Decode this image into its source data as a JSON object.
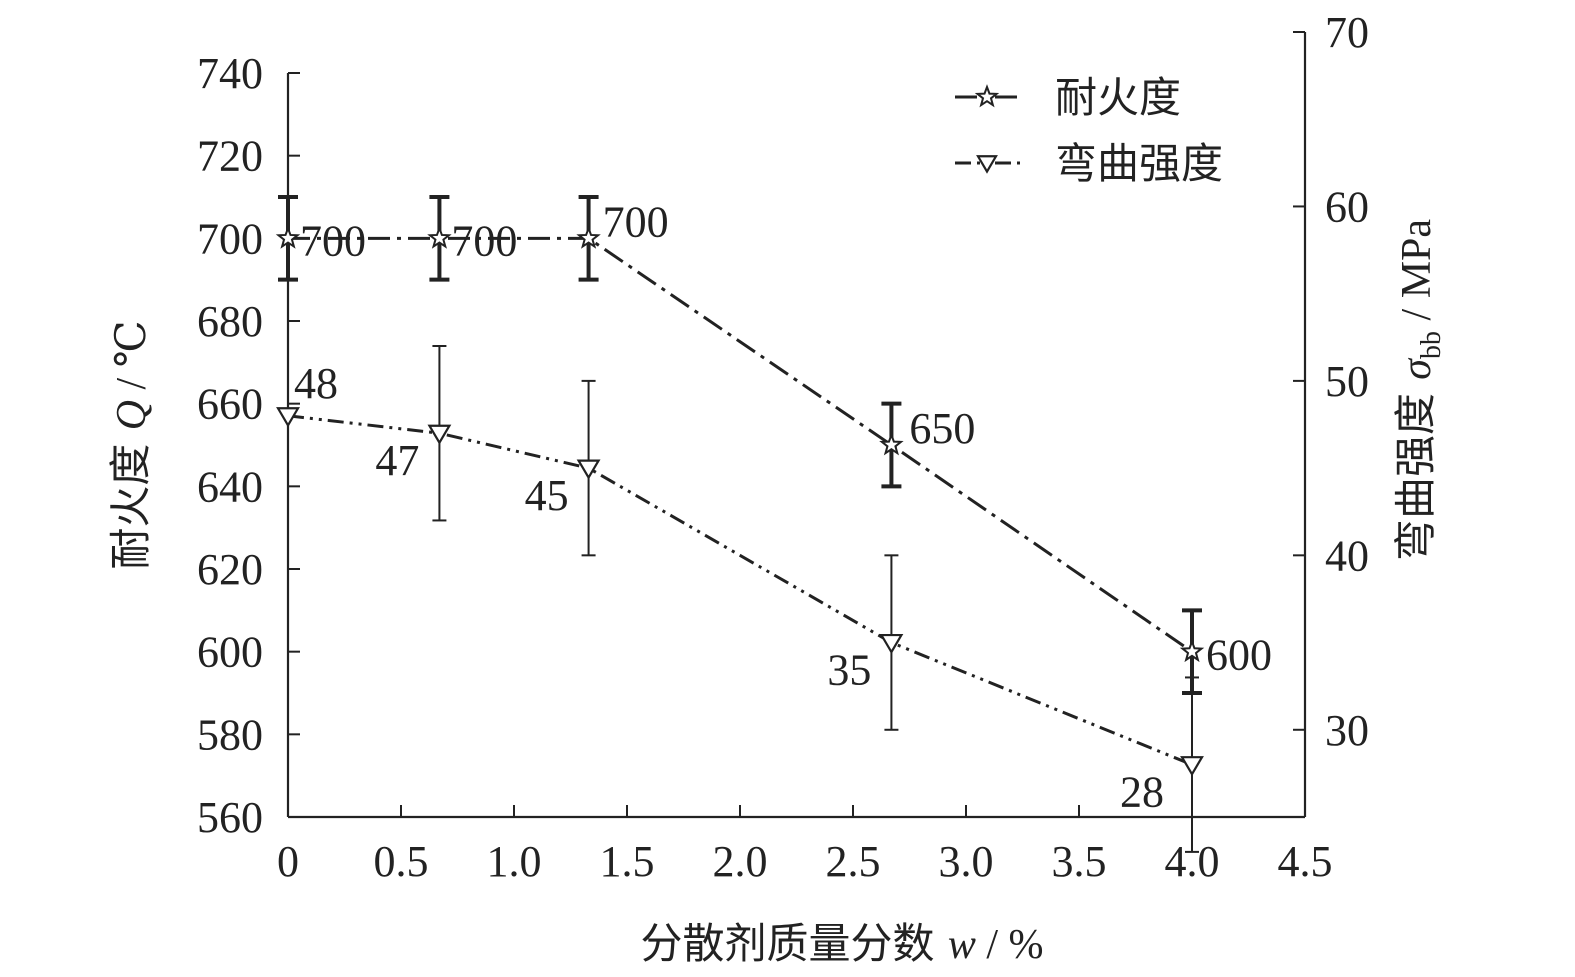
{
  "chart_data": {
    "type": "line",
    "x": [
      0,
      0.67,
      1.33,
      2.67,
      4.0
    ],
    "xlabel_parts": [
      "分散剂质量分数 ",
      "w",
      " / %"
    ],
    "ylabel_left_parts": [
      "耐火度 ",
      "Q",
      " / ℃"
    ],
    "ylabel_right_parts": [
      "弯曲强度 ",
      "σ",
      "bb",
      " / MPa"
    ],
    "xlim": [
      0,
      4.5
    ],
    "ylim_left": [
      560,
      740
    ],
    "ylim_right": [
      25,
      70
    ],
    "x_ticks": [
      "0",
      "0.5",
      "1.0",
      "1.5",
      "2.0",
      "2.5",
      "3.0",
      "3.5",
      "4.0",
      "4.5"
    ],
    "y_left_ticks": [
      "560",
      "580",
      "600",
      "620",
      "640",
      "660",
      "680",
      "700",
      "720",
      "740"
    ],
    "y_right_ticks": [
      "30",
      "40",
      "50",
      "60",
      "70"
    ],
    "series": [
      {
        "name": "耐火度",
        "axis": "left",
        "marker": "star",
        "line_style": "dash-dot",
        "values": [
          700,
          700,
          700,
          650,
          600
        ],
        "err": [
          10,
          10,
          10,
          10,
          10
        ],
        "labels": [
          "700",
          "700",
          "700",
          "650",
          "600"
        ]
      },
      {
        "name": "弯曲强度",
        "axis": "right",
        "marker": "triangle-down",
        "line_style": "dash-dot-dot",
        "values": [
          48,
          47,
          45,
          35,
          28
        ],
        "err": [
          0,
          5,
          5,
          5,
          5
        ],
        "labels": [
          "48",
          "47",
          "45",
          "35",
          "28"
        ]
      }
    ],
    "legend_position": "top-right",
    "grid": false
  }
}
